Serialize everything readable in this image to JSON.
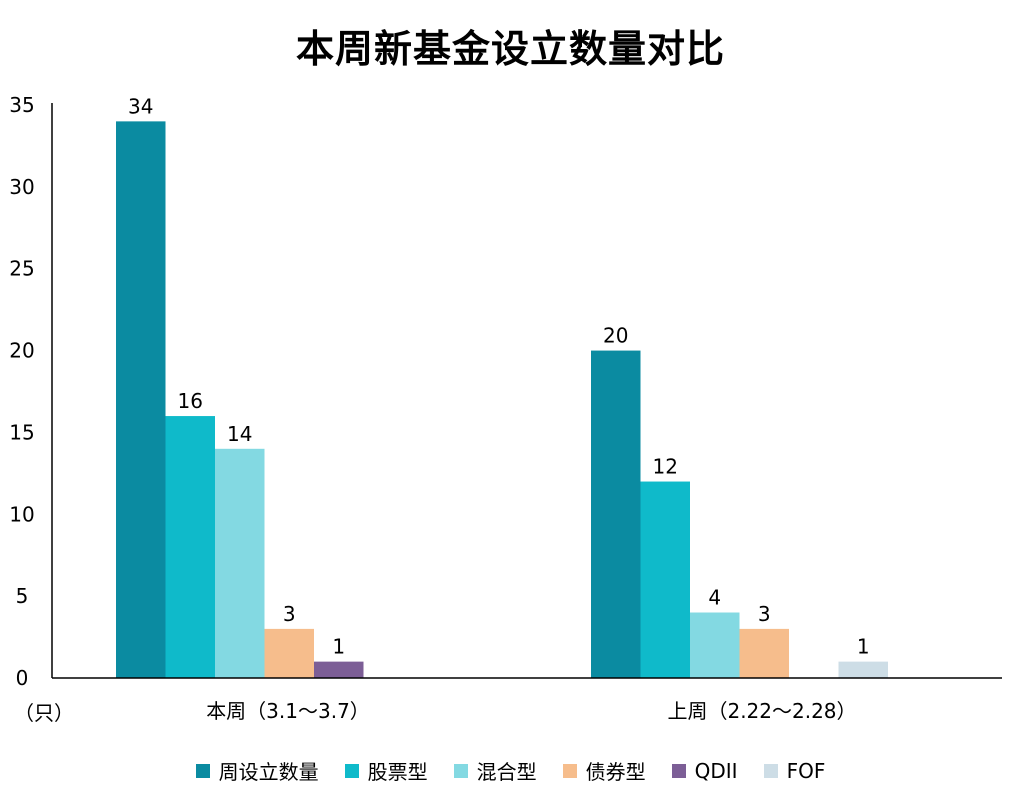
{
  "chart_data": {
    "type": "bar",
    "title": "本周新基金设立数量对比",
    "unit_label": "（只）",
    "categories": [
      "本周（3.1～3.7）",
      "上周（2.22～2.28）"
    ],
    "series": [
      {
        "name": "周设立数量",
        "color": "#0b8ba1",
        "values": [
          34,
          20
        ]
      },
      {
        "name": "股票型",
        "color": "#0fbaca",
        "values": [
          16,
          12
        ]
      },
      {
        "name": "混合型",
        "color": "#83d9e2",
        "values": [
          14,
          4
        ]
      },
      {
        "name": "债券型",
        "color": "#f6bd8c",
        "values": [
          3,
          3
        ]
      },
      {
        "name": "QDII",
        "color": "#7c5e96",
        "values": [
          1,
          null
        ]
      },
      {
        "name": "FOF",
        "color": "#cddde6",
        "values": [
          null,
          1
        ]
      }
    ],
    "yticks": [
      0,
      5,
      10,
      15,
      20,
      25,
      30,
      35
    ],
    "ylim": [
      0,
      35
    ],
    "grid": false,
    "legend_position": "bottom",
    "data_labels": true
  }
}
